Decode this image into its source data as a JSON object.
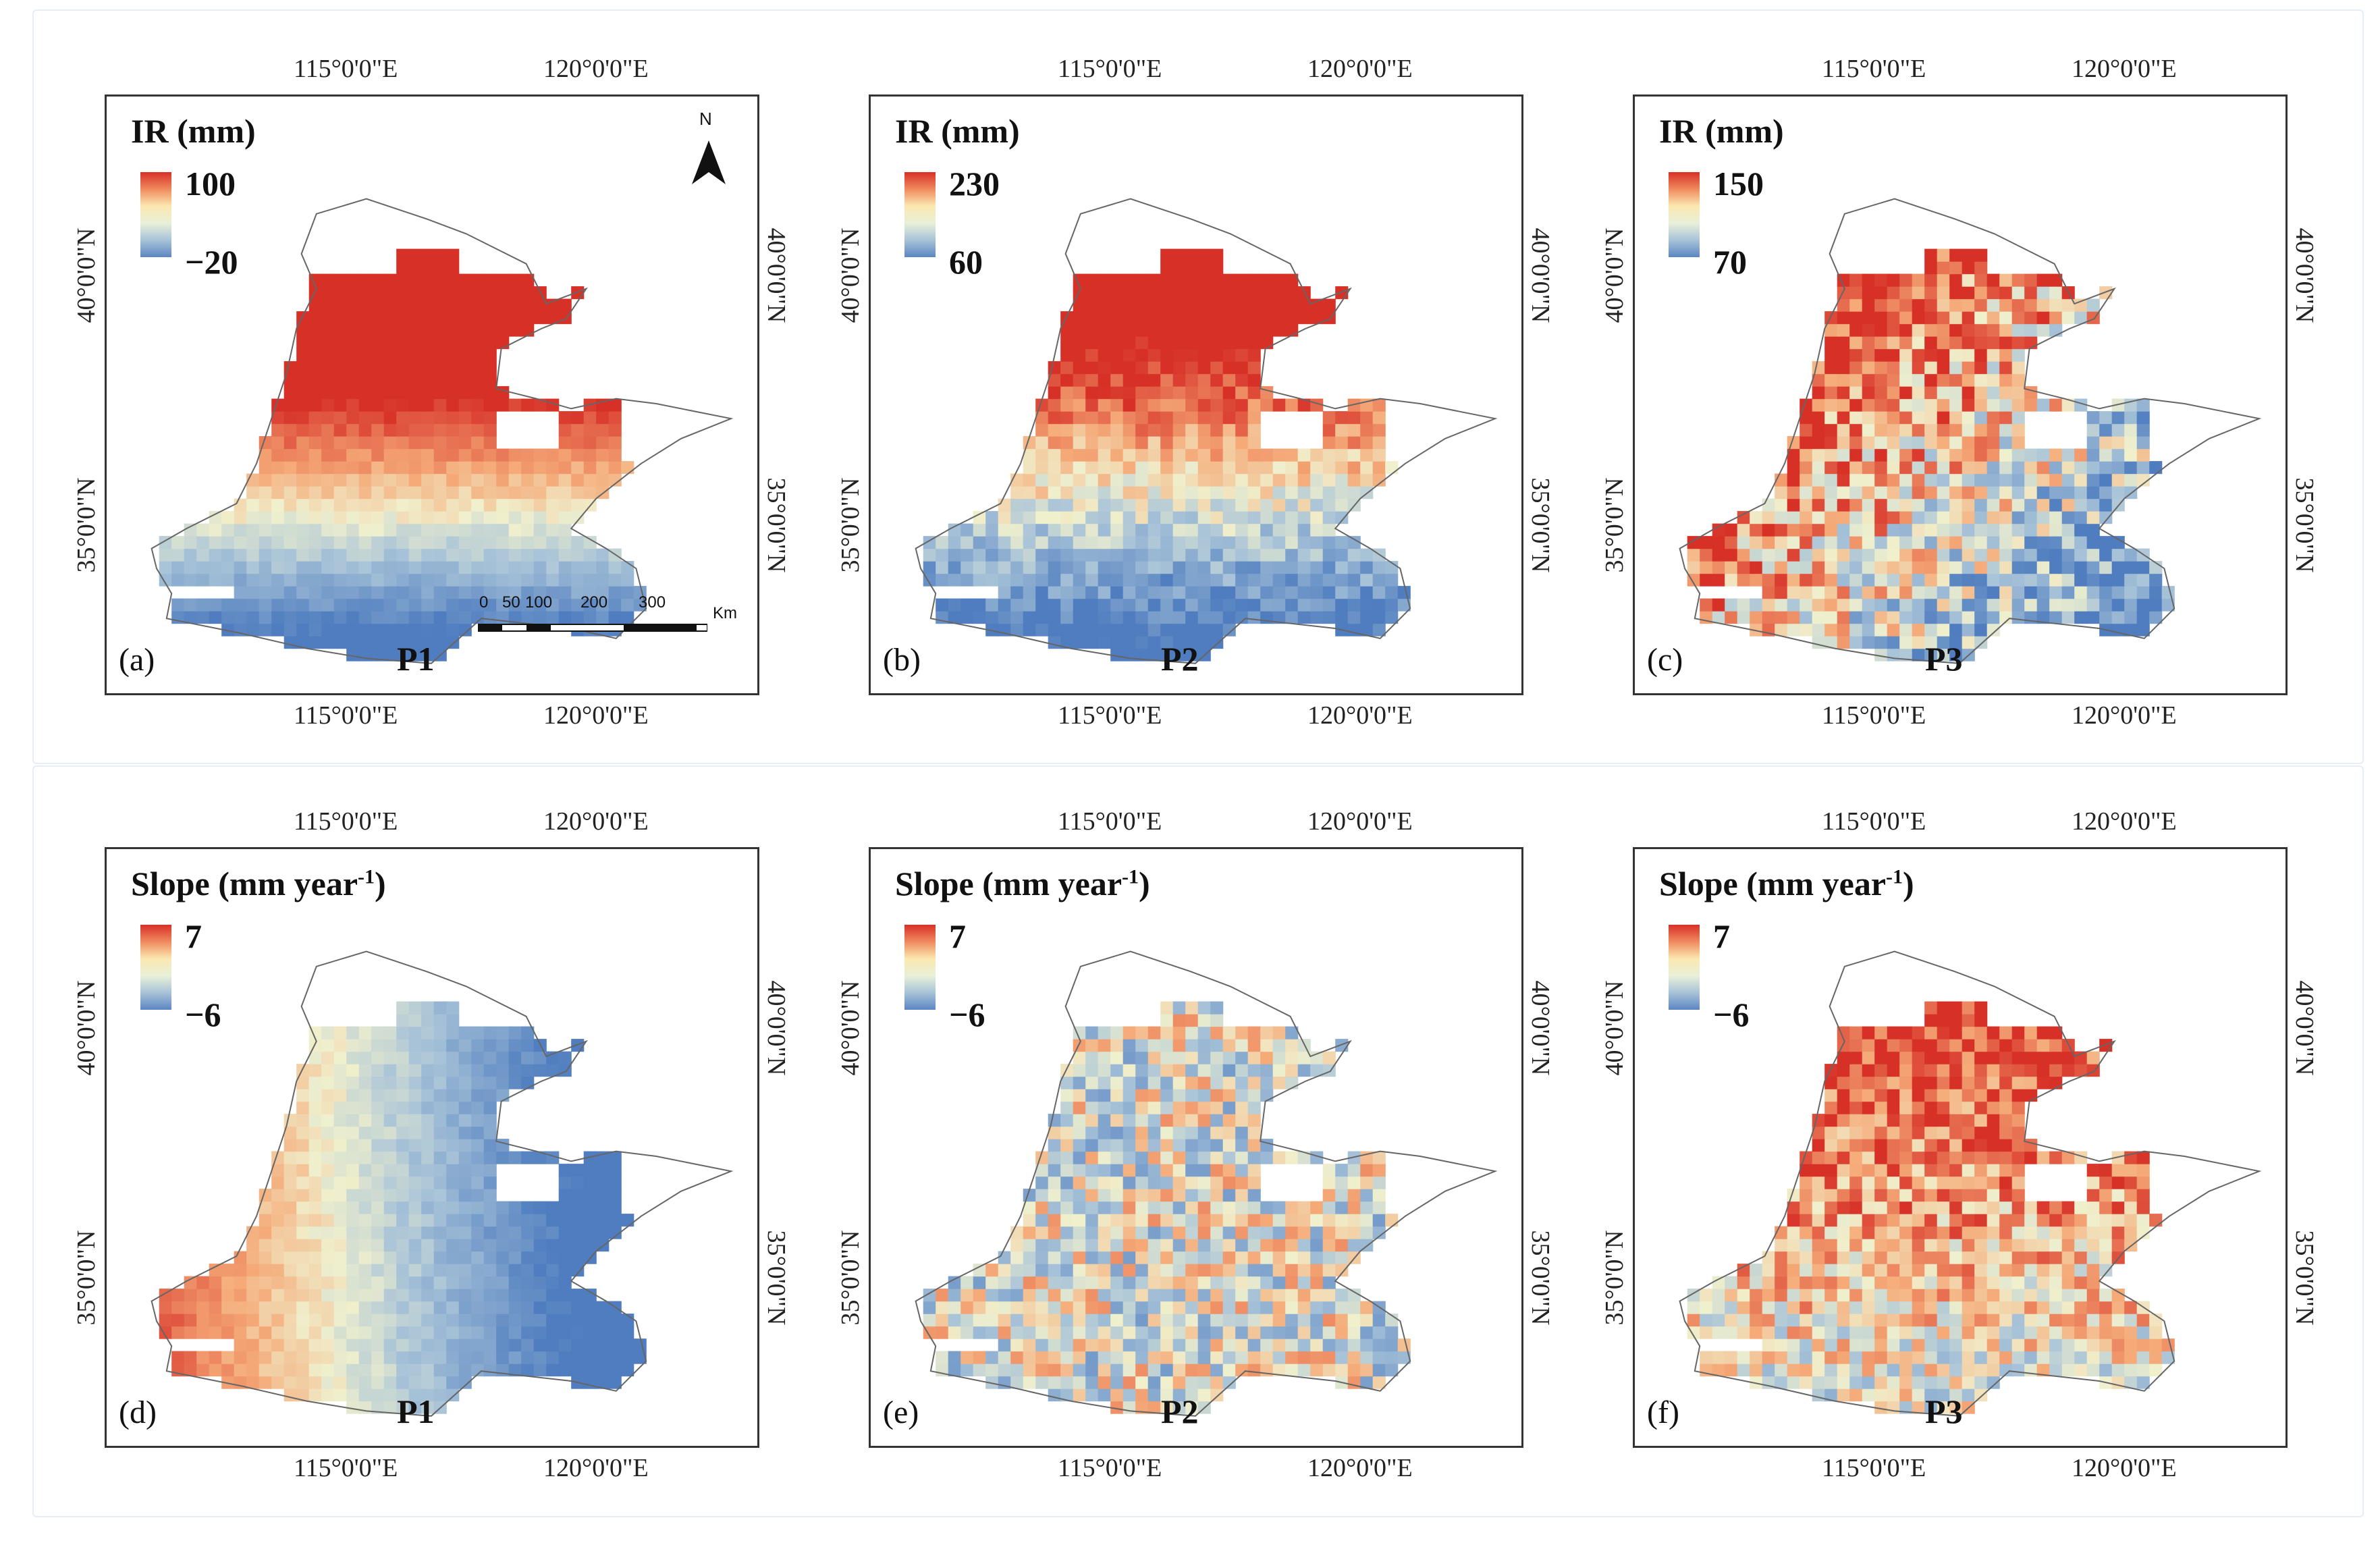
{
  "figure": {
    "panels": [
      {
        "id": "a",
        "label": "(a)",
        "period": "P1",
        "legend_title": "IR (mm)",
        "legend_max": "100",
        "legend_min": "−20",
        "variable": "ir",
        "scenario": 1
      },
      {
        "id": "b",
        "label": "(b)",
        "period": "P2",
        "legend_title": "IR (mm)",
        "legend_max": "230",
        "legend_min": "60",
        "variable": "ir",
        "scenario": 2
      },
      {
        "id": "c",
        "label": "(c)",
        "period": "P3",
        "legend_title": "IR (mm)",
        "legend_max": "150",
        "legend_min": "70",
        "variable": "ir",
        "scenario": 3
      },
      {
        "id": "d",
        "label": "(d)",
        "period": "P1",
        "legend_title": "Slope (mm year",
        "legend_title_sup": "-1",
        "legend_title_end": ")",
        "legend_max": "7",
        "legend_min": "−6",
        "variable": "slope",
        "scenario": 4
      },
      {
        "id": "e",
        "label": "(e)",
        "period": "P2",
        "legend_title": "Slope (mm year",
        "legend_title_sup": "-1",
        "legend_title_end": ")",
        "legend_max": "7",
        "legend_min": "−6",
        "variable": "slope",
        "scenario": 5
      },
      {
        "id": "f",
        "label": "(f)",
        "period": "P3",
        "legend_title": "Slope (mm year",
        "legend_title_sup": "-1",
        "legend_title_end": ")",
        "legend_max": "7",
        "legend_min": "−6",
        "variable": "slope",
        "scenario": 6
      }
    ],
    "lon_ticks": [
      "115°0'0\"E",
      "120°0'0\"E"
    ],
    "lat_ticks": [
      "40°0'0\"N",
      "35°0'0\"N"
    ],
    "north_label": "N",
    "scale_labels": [
      "0",
      "50",
      "100",
      "200",
      "300"
    ],
    "scale_unit": "Km",
    "colors": {
      "high": "#d73027",
      "mid": "#fbe8b0",
      "low": "#4f7dbf",
      "frame": "#333333",
      "outline": "#666666"
    }
  }
}
